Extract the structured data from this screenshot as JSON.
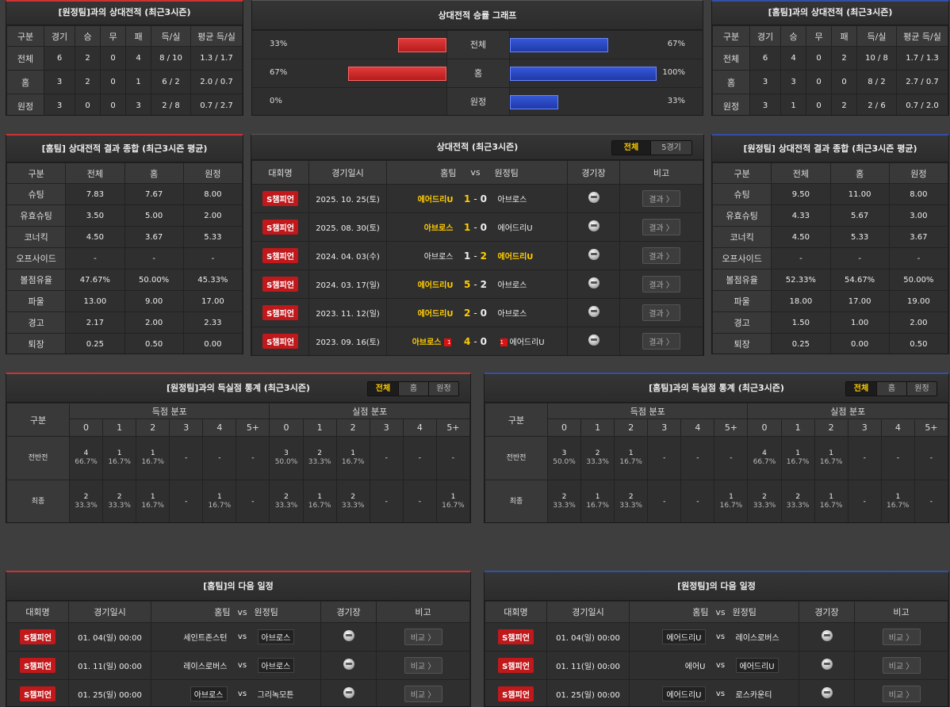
{
  "h2h_away": {
    "title": "[원정팀]과의 상대전적 (최근3시즌)",
    "headers": [
      "구분",
      "경기",
      "승",
      "무",
      "패",
      "득/실",
      "평균 득/실"
    ],
    "rows": [
      [
        "전체",
        "6",
        "2",
        "0",
        "4",
        "8 / 10",
        "1.3 / 1.7"
      ],
      [
        "홈",
        "3",
        "2",
        "0",
        "1",
        "6 / 2",
        "2.0 / 0.7"
      ],
      [
        "원정",
        "3",
        "0",
        "0",
        "3",
        "2 / 8",
        "0.7 / 2.7"
      ]
    ]
  },
  "graph": {
    "title": "상대전적 승률 그래프",
    "rows": [
      {
        "label": "전체",
        "left_pct": "33%",
        "right_pct": "67%",
        "left": 0.33,
        "right": 0.67
      },
      {
        "label": "홈",
        "left_pct": "67%",
        "right_pct": "100%",
        "left": 0.67,
        "right": 1.0
      },
      {
        "label": "원정",
        "left_pct": "0%",
        "right_pct": "33%",
        "left": 0.0,
        "right": 0.33
      }
    ]
  },
  "h2h_home": {
    "title": "[홈팀]과의 상대전적 (최근3시즌)",
    "headers": [
      "구분",
      "경기",
      "승",
      "무",
      "패",
      "득/실",
      "평균 득/실"
    ],
    "rows": [
      [
        "전체",
        "6",
        "4",
        "0",
        "2",
        "10 / 8",
        "1.7 / 1.3"
      ],
      [
        "홈",
        "3",
        "3",
        "0",
        "0",
        "8 / 2",
        "2.7 / 0.7"
      ],
      [
        "원정",
        "3",
        "1",
        "0",
        "2",
        "2 / 6",
        "0.7 / 2.0"
      ]
    ]
  },
  "summary_home": {
    "title": "[홈팀] 상대전적 결과 종합 (최근3시즌 평균)",
    "headers": [
      "구분",
      "전체",
      "홈",
      "원정"
    ],
    "rows": [
      [
        "슈팅",
        "7.83",
        "7.67",
        "8.00"
      ],
      [
        "유효슈팅",
        "3.50",
        "5.00",
        "2.00"
      ],
      [
        "코너킥",
        "4.50",
        "3.67",
        "5.33"
      ],
      [
        "오프사이드",
        "-",
        "-",
        "-"
      ],
      [
        "볼점유율",
        "47.67%",
        "50.00%",
        "45.33%"
      ],
      [
        "파울",
        "13.00",
        "9.00",
        "17.00"
      ],
      [
        "경고",
        "2.17",
        "2.00",
        "2.33"
      ],
      [
        "퇴장",
        "0.25",
        "0.50",
        "0.00"
      ]
    ]
  },
  "summary_away": {
    "title": "[원정팀] 상대전적 결과 종합 (최근3시즌 평균)",
    "headers": [
      "구분",
      "전체",
      "홈",
      "원정"
    ],
    "rows": [
      [
        "슈팅",
        "9.50",
        "11.00",
        "8.00"
      ],
      [
        "유효슈팅",
        "4.33",
        "5.67",
        "3.00"
      ],
      [
        "코너킥",
        "4.50",
        "5.33",
        "3.67"
      ],
      [
        "오프사이드",
        "-",
        "-",
        "-"
      ],
      [
        "볼점유율",
        "52.33%",
        "54.67%",
        "50.00%"
      ],
      [
        "파울",
        "18.00",
        "17.00",
        "19.00"
      ],
      [
        "경고",
        "1.50",
        "1.00",
        "2.00"
      ],
      [
        "퇴장",
        "0.25",
        "0.00",
        "0.50"
      ]
    ]
  },
  "matches": {
    "title": "상대전적 (최근3시즌)",
    "tabs": [
      "전체",
      "5경기"
    ],
    "headers": {
      "league": "대회명",
      "date": "경기일시",
      "home": "홈팀",
      "vs": "vs",
      "away": "원정팀",
      "venue": "경기장",
      "note": "비고"
    },
    "result_label": "결과 〉",
    "rows": [
      {
        "league": "S챔피언",
        "date": "2025. 10. 25(토)",
        "home": "에어드리U",
        "hs": "1",
        "as": "0",
        "away": "아브로스",
        "winner": "home",
        "hr": "",
        "ar": ""
      },
      {
        "league": "S챔피언",
        "date": "2025. 08. 30(토)",
        "home": "아브로스",
        "hs": "1",
        "as": "0",
        "away": "에어드리U",
        "winner": "home",
        "hr": "",
        "ar": ""
      },
      {
        "league": "S챔피언",
        "date": "2024. 04. 03(수)",
        "home": "아브로스",
        "hs": "1",
        "as": "2",
        "away": "에어드리U",
        "winner": "away",
        "hr": "",
        "ar": ""
      },
      {
        "league": "S챔피언",
        "date": "2024. 03. 17(일)",
        "home": "에어드리U",
        "hs": "5",
        "as": "2",
        "away": "아브로스",
        "winner": "home",
        "hr": "",
        "ar": ""
      },
      {
        "league": "S챔피언",
        "date": "2023. 11. 12(일)",
        "home": "에어드리U",
        "hs": "2",
        "as": "0",
        "away": "아브로스",
        "winner": "home",
        "hr": "",
        "ar": ""
      },
      {
        "league": "S챔피언",
        "date": "2023. 09. 16(토)",
        "home": "아브로스",
        "hs": "4",
        "as": "0",
        "away": "에어드리U",
        "winner": "home",
        "hr": "1",
        "ar": "1"
      }
    ]
  },
  "goals_away": {
    "title": "[원정팀]과의 득실점 통계 (최근3시즌)",
    "tabs": [
      "전체",
      "홈",
      "원정"
    ],
    "label_col": "구분",
    "for_label": "득점 분포",
    "against_label": "실점 분포",
    "cols": [
      "0",
      "1",
      "2",
      "3",
      "4",
      "5+"
    ],
    "rows": [
      {
        "label": "전반전",
        "for": [
          [
            "4",
            "66.7%"
          ],
          [
            "1",
            "16.7%"
          ],
          [
            "1",
            "16.7%"
          ],
          [
            "-",
            ""
          ],
          [
            "-",
            ""
          ],
          [
            "-",
            ""
          ]
        ],
        "against": [
          [
            "3",
            "50.0%"
          ],
          [
            "2",
            "33.3%"
          ],
          [
            "1",
            "16.7%"
          ],
          [
            "-",
            ""
          ],
          [
            "-",
            ""
          ],
          [
            "-",
            ""
          ]
        ]
      },
      {
        "label": "최종",
        "for": [
          [
            "2",
            "33.3%"
          ],
          [
            "2",
            "33.3%"
          ],
          [
            "1",
            "16.7%"
          ],
          [
            "-",
            ""
          ],
          [
            "1",
            "16.7%"
          ],
          [
            "-",
            ""
          ]
        ],
        "against": [
          [
            "2",
            "33.3%"
          ],
          [
            "1",
            "16.7%"
          ],
          [
            "2",
            "33.3%"
          ],
          [
            "-",
            ""
          ],
          [
            "-",
            ""
          ],
          [
            "1",
            "16.7%"
          ]
        ]
      }
    ]
  },
  "goals_home": {
    "title": "[홈팀]과의 득실점 통계 (최근3시즌)",
    "tabs": [
      "전체",
      "홈",
      "원정"
    ],
    "label_col": "구분",
    "for_label": "득점 분포",
    "against_label": "실점 분포",
    "cols": [
      "0",
      "1",
      "2",
      "3",
      "4",
      "5+"
    ],
    "rows": [
      {
        "label": "전반전",
        "for": [
          [
            "3",
            "50.0%"
          ],
          [
            "2",
            "33.3%"
          ],
          [
            "1",
            "16.7%"
          ],
          [
            "-",
            ""
          ],
          [
            "-",
            ""
          ],
          [
            "-",
            ""
          ]
        ],
        "against": [
          [
            "4",
            "66.7%"
          ],
          [
            "1",
            "16.7%"
          ],
          [
            "1",
            "16.7%"
          ],
          [
            "-",
            ""
          ],
          [
            "-",
            ""
          ],
          [
            "-",
            ""
          ]
        ]
      },
      {
        "label": "최종",
        "for": [
          [
            "2",
            "33.3%"
          ],
          [
            "1",
            "16.7%"
          ],
          [
            "2",
            "33.3%"
          ],
          [
            "-",
            ""
          ],
          [
            "-",
            ""
          ],
          [
            "1",
            "16.7%"
          ]
        ],
        "against": [
          [
            "2",
            "33.3%"
          ],
          [
            "2",
            "33.3%"
          ],
          [
            "1",
            "16.7%"
          ],
          [
            "-",
            ""
          ],
          [
            "1",
            "16.7%"
          ],
          [
            "-",
            ""
          ]
        ]
      }
    ]
  },
  "next_home": {
    "title": "[홈팀]의 다음 일정",
    "headers": {
      "league": "대회명",
      "date": "경기일시",
      "home": "홈팀",
      "vs": "vs",
      "away": "원정팀",
      "venue": "경기장",
      "note": "비고"
    },
    "btn": "비교 〉",
    "rows": [
      {
        "league": "S챔피언",
        "date": "01. 04(일) 00:00",
        "home": "세인트존스턴",
        "away": "아브로스",
        "hl": "away"
      },
      {
        "league": "S챔피언",
        "date": "01. 11(일) 00:00",
        "home": "레이스로버스",
        "away": "아브로스",
        "hl": "away"
      },
      {
        "league": "S챔피언",
        "date": "01. 25(일) 00:00",
        "home": "아브로스",
        "away": "그리녹모튼",
        "hl": "home"
      }
    ]
  },
  "next_away": {
    "title": "[원정팀]의 다음 일정",
    "headers": {
      "league": "대회명",
      "date": "경기일시",
      "home": "홈팀",
      "vs": "vs",
      "away": "원정팀",
      "venue": "경기장",
      "note": "비고"
    },
    "btn": "비교 〉",
    "rows": [
      {
        "league": "S챔피언",
        "date": "01. 04(일) 00:00",
        "home": "에어드리U",
        "away": "레이스로버스",
        "hl": "home"
      },
      {
        "league": "S챔피언",
        "date": "01. 11(일) 00:00",
        "home": "에어U",
        "away": "에어드리U",
        "hl": "away"
      },
      {
        "league": "S챔피언",
        "date": "01. 25(일) 00:00",
        "home": "에어드리U",
        "away": "로스카운티",
        "hl": "home"
      }
    ]
  }
}
